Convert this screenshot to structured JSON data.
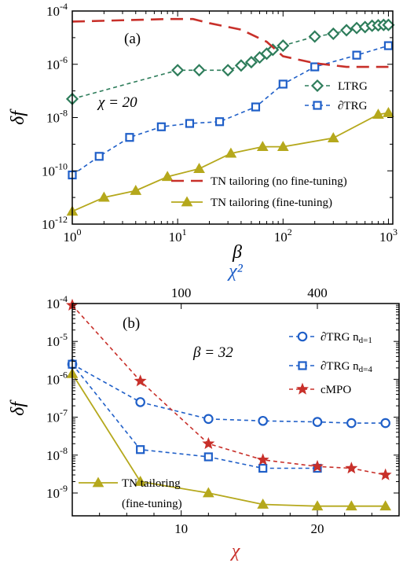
{
  "chart_data": [
    {
      "type": "line",
      "panel_label": "(a)",
      "annotation": "χ = 20",
      "xlabel": "β",
      "ylabel": "δf",
      "xscale": "log",
      "yscale": "log",
      "xlim": [
        1,
        1100
      ],
      "ylim": [
        1e-12,
        0.0001
      ],
      "x_ticks": [
        {
          "v": 1,
          "label": "10^0"
        },
        {
          "v": 10,
          "label": "10^1"
        },
        {
          "v": 100,
          "label": "10^2"
        },
        {
          "v": 1000,
          "label": "10^3"
        }
      ],
      "y_ticks": [
        {
          "v": 1e-12,
          "label": "10^-12"
        },
        {
          "v": 1e-10,
          "label": "10^-10"
        },
        {
          "v": 1e-08,
          "label": "10^-8"
        },
        {
          "v": 1e-06,
          "label": "10^-6"
        },
        {
          "v": 0.0001,
          "label": "10^-4"
        }
      ],
      "legend_position": "right",
      "series": [
        {
          "name": "LTRG",
          "color": "#2e7d5b",
          "line": "dashed",
          "marker": "diamond",
          "x": [
            1,
            10,
            16,
            30,
            40,
            50,
            60,
            70,
            80,
            100,
            200,
            300,
            400,
            500,
            600,
            700,
            800,
            900,
            1000
          ],
          "y": [
            5e-08,
            6e-07,
            6e-07,
            6e-07,
            9e-07,
            1.2e-06,
            1.8e-06,
            2.5e-06,
            3.5e-06,
            5e-06,
            1.1e-05,
            1.4e-05,
            1.9e-05,
            2.3e-05,
            2.5e-05,
            2.8e-05,
            2.9e-05,
            3e-05,
            3e-05
          ]
        },
        {
          "name": "∂TRG",
          "color": "#1f5fc8",
          "line": "dashed",
          "marker": "square",
          "x": [
            1,
            1.8,
            3.5,
            7,
            13,
            25,
            55,
            100,
            200,
            500,
            1000
          ],
          "y": [
            7e-11,
            3.5e-10,
            1.8e-09,
            4.5e-09,
            6e-09,
            7e-09,
            2.5e-08,
            1.8e-07,
            8e-07,
            2.2e-06,
            5e-06
          ]
        },
        {
          "name": "TN tailoring (no fine-tuning)",
          "color": "#c8302a",
          "line": "long-dashed",
          "marker": "none",
          "x": [
            1,
            3,
            8,
            14,
            20,
            40,
            70,
            100,
            200,
            400,
            1000
          ],
          "y": [
            4e-05,
            4.5e-05,
            5e-05,
            5e-05,
            3.5e-05,
            2e-05,
            7e-06,
            2e-06,
            1.1e-06,
            8e-07,
            8e-07
          ]
        },
        {
          "name": "TN tailoring (fine-tuning)",
          "color": "#b5a81c",
          "line": "solid",
          "marker": "triangle",
          "x": [
            1,
            2,
            4,
            8,
            16,
            32,
            64,
            100,
            300,
            800,
            1000
          ],
          "y": [
            3e-12,
            1e-11,
            1.8e-11,
            6e-11,
            1.2e-10,
            4.5e-10,
            8e-10,
            8e-10,
            1.7e-09,
            1.3e-08,
            1.5e-08
          ]
        }
      ]
    },
    {
      "type": "line",
      "panel_label": "(b)",
      "annotation": "β = 32",
      "xlabel": "χ",
      "x2label": "χ²",
      "ylabel": "δf",
      "yscale": "log",
      "xlim": [
        2,
        26
      ],
      "ylim": [
        2.5e-10,
        0.0001
      ],
      "x_ticks": [
        {
          "v": 10,
          "label": "10"
        },
        {
          "v": 20,
          "label": "20"
        }
      ],
      "x2_ticks": [
        {
          "v": 100,
          "label": "100"
        },
        {
          "v": 400,
          "label": "400"
        }
      ],
      "y_ticks": [
        {
          "v": 1e-09,
          "label": "10^-9"
        },
        {
          "v": 1e-08,
          "label": "10^-8"
        },
        {
          "v": 1e-07,
          "label": "10^-7"
        },
        {
          "v": 1e-06,
          "label": "10^-6"
        },
        {
          "v": 1e-05,
          "label": "10^-5"
        },
        {
          "v": 0.0001,
          "label": "10^-4"
        }
      ],
      "xlabel_color": "#c8302a",
      "x2label_color": "#1f5fc8",
      "legend_position": "right",
      "series": [
        {
          "name": "∂TRG n_d=1",
          "color": "#1f5fc8",
          "line": "dashed",
          "marker": "circle",
          "x": [
            2,
            7,
            12,
            16,
            20,
            22.5,
            25
          ],
          "y": [
            2.5e-06,
            2.5e-07,
            9e-08,
            8e-08,
            7.5e-08,
            7e-08,
            7e-08
          ]
        },
        {
          "name": "∂TRG n_d=4",
          "color": "#1f5fc8",
          "line": "dashed",
          "marker": "square",
          "x": [
            2,
            7,
            12,
            16,
            20
          ],
          "y": [
            2.5e-06,
            1.4e-08,
            9e-09,
            4.5e-09,
            4.5e-09
          ]
        },
        {
          "name": "cMPO",
          "color": "#c8302a",
          "line": "dashed",
          "marker": "star",
          "x": [
            2,
            7,
            12,
            16,
            20,
            22.5,
            25
          ],
          "y": [
            9e-05,
            9e-07,
            2e-08,
            7.5e-09,
            5e-09,
            4.5e-09,
            3e-09
          ]
        },
        {
          "name": "TN tailoring (fine-tuning)",
          "color": "#b5a81c",
          "line": "solid",
          "marker": "triangle",
          "x": [
            2,
            7,
            12,
            16,
            20,
            22.5,
            25
          ],
          "y": [
            1.4e-06,
            2e-09,
            1e-09,
            5e-10,
            4.5e-10,
            4.5e-10,
            4.5e-10
          ]
        }
      ]
    }
  ]
}
